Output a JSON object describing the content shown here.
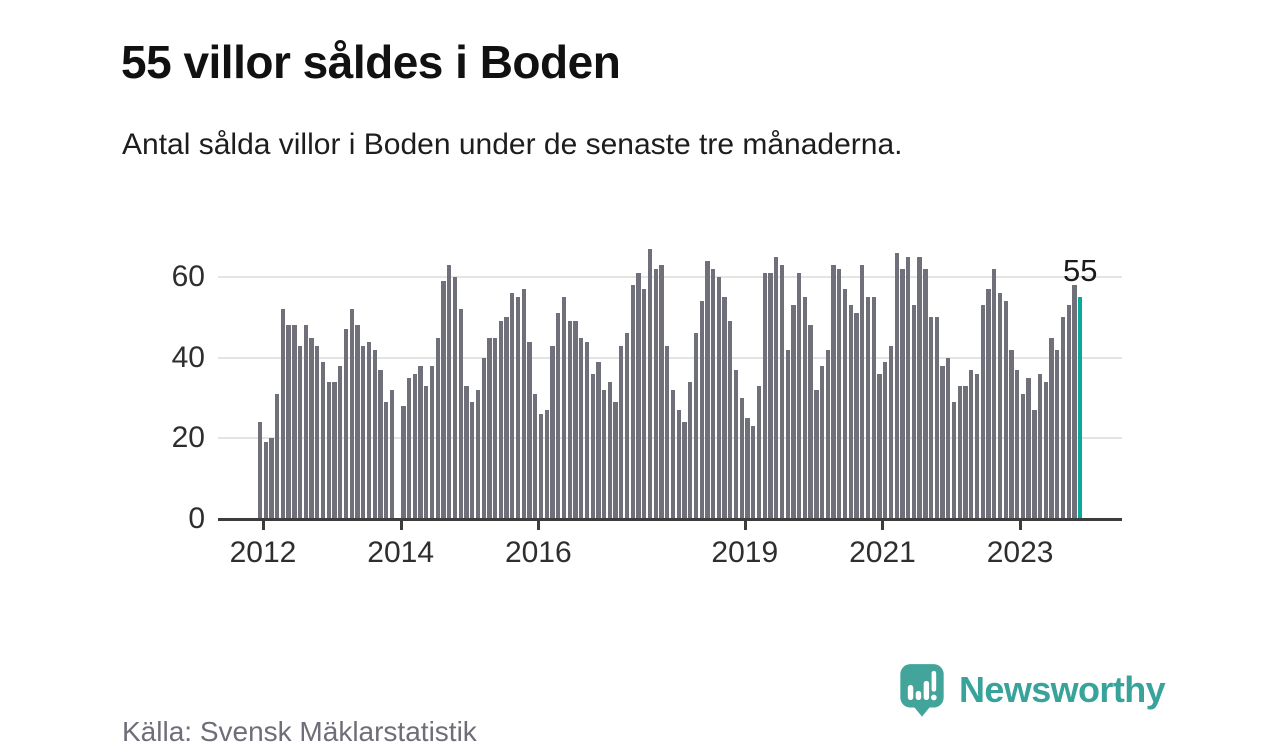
{
  "header": {
    "title": "55 villor såldes i Boden",
    "subtitle": "Antal sålda villor i Boden under de senaste tre månaderna."
  },
  "footer": {
    "source": "Källa: Svensk Mäklarstatistik",
    "logo_text": "Newsworthy"
  },
  "colors": {
    "bar": "#70707a",
    "highlight": "#0aa79c",
    "gridline": "#e4e4e4",
    "axis": "#3c3c3c",
    "logo": "#38a39a"
  },
  "chart_data": {
    "type": "bar",
    "title": "55 villor såldes i Boden",
    "xlabel": "",
    "ylabel": "",
    "start_month": "2012-01",
    "frequency": "monthly",
    "ylim": [
      0,
      70
    ],
    "yticks": [
      0,
      20,
      40,
      60
    ],
    "xticks": [
      "2012",
      "2014",
      "2016",
      "2019",
      "2021",
      "2023"
    ],
    "grid": "horizontal",
    "annotation": {
      "text": "55",
      "target": "last-bar"
    },
    "highlight_last": true,
    "values": [
      24,
      19,
      20,
      31,
      52,
      48,
      48,
      43,
      48,
      45,
      43,
      39,
      34,
      34,
      38,
      47,
      52,
      48,
      43,
      44,
      42,
      37,
      29,
      32,
      null,
      28,
      35,
      36,
      38,
      33,
      38,
      45,
      59,
      63,
      60,
      52,
      33,
      29,
      32,
      40,
      45,
      45,
      49,
      50,
      56,
      55,
      57,
      44,
      31,
      26,
      27,
      43,
      51,
      55,
      49,
      49,
      45,
      44,
      36,
      39,
      32,
      34,
      29,
      43,
      46,
      58,
      61,
      57,
      67,
      62,
      63,
      43,
      32,
      27,
      24,
      34,
      46,
      54,
      64,
      62,
      60,
      55,
      49,
      37,
      30,
      25,
      23,
      33,
      61,
      61,
      65,
      63,
      42,
      53,
      61,
      55,
      48,
      32,
      38,
      42,
      63,
      62,
      57,
      53,
      51,
      63,
      55,
      55,
      36,
      39,
      43,
      66,
      62,
      65,
      53,
      65,
      62,
      50,
      50,
      38,
      40,
      29,
      33,
      33,
      37,
      36,
      53,
      57,
      62,
      56,
      54,
      42,
      37,
      31,
      35,
      27,
      36,
      34,
      45,
      42,
      50,
      53,
      58,
      55
    ]
  }
}
